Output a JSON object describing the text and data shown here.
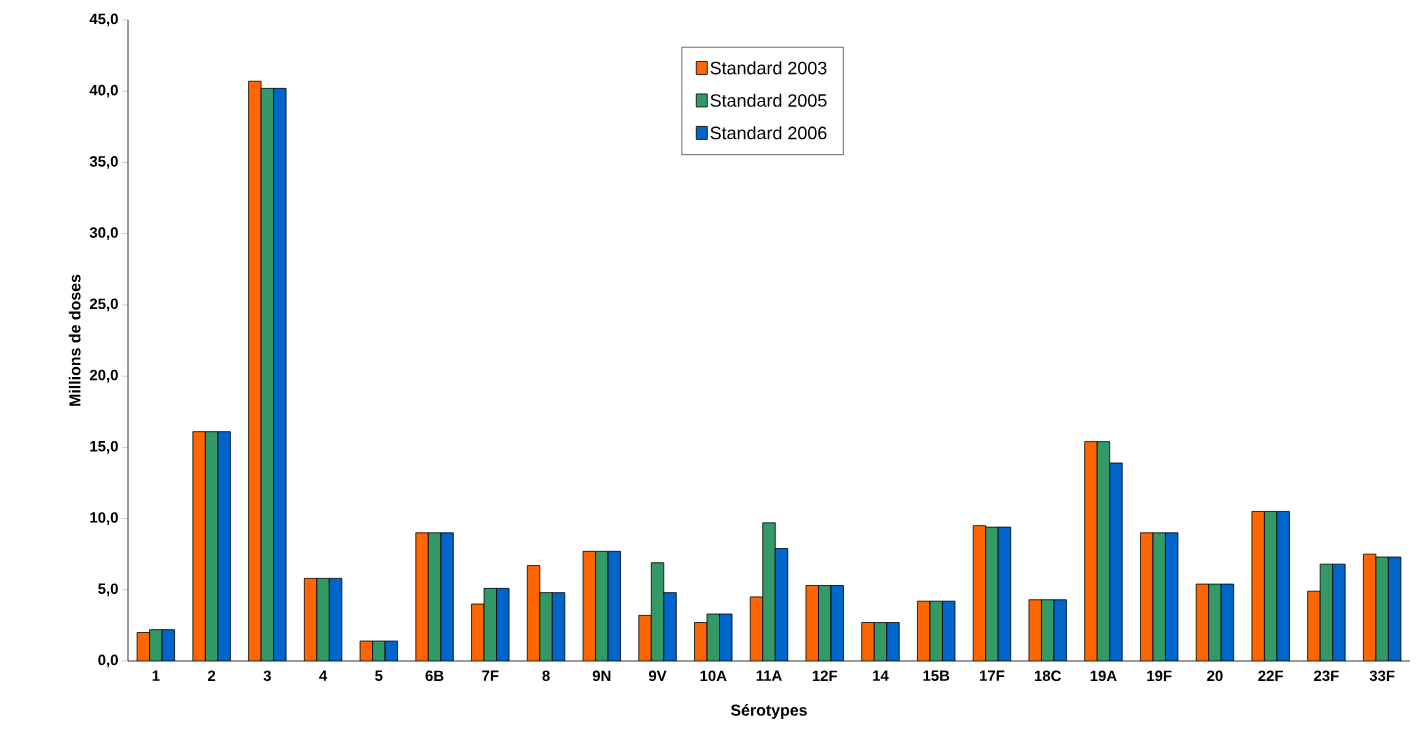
{
  "chart_data": {
    "type": "bar",
    "xlabel": "Sérotypes",
    "ylabel": "Millions de doses",
    "categories": [
      "1",
      "2",
      "3",
      "4",
      "5",
      "6B",
      "7F",
      "8",
      "9N",
      "9V",
      "10A",
      "11A",
      "12F",
      "14",
      "15B",
      "17F",
      "18C",
      "19A",
      "19F",
      "20",
      "22F",
      "23F",
      "33F"
    ],
    "series": [
      {
        "name": "Standard 2003",
        "color": "#ff6600",
        "values": [
          2.0,
          16.1,
          40.7,
          5.8,
          1.4,
          9.0,
          4.0,
          6.7,
          7.7,
          3.2,
          2.7,
          4.5,
          5.3,
          2.7,
          4.2,
          9.5,
          4.3,
          15.4,
          9.0,
          5.4,
          10.5,
          4.9,
          7.5
        ]
      },
      {
        "name": "Standard 2005",
        "color": "#339966",
        "values": [
          2.2,
          16.1,
          40.2,
          5.8,
          1.4,
          9.0,
          5.1,
          4.8,
          7.7,
          6.9,
          3.3,
          9.7,
          5.3,
          2.7,
          4.2,
          9.4,
          4.3,
          15.4,
          9.0,
          5.4,
          10.5,
          6.8,
          7.3
        ]
      },
      {
        "name": "Standard 2006",
        "color": "#0066cc",
        "values": [
          2.2,
          16.1,
          40.2,
          5.8,
          1.4,
          9.0,
          5.1,
          4.8,
          7.7,
          4.8,
          3.3,
          7.9,
          5.3,
          2.7,
          4.2,
          9.4,
          4.3,
          13.9,
          9.0,
          5.4,
          10.5,
          6.8,
          7.3
        ]
      }
    ],
    "ylim": [
      0,
      45
    ],
    "yticks": [
      {
        "value": 0,
        "label": "0,0"
      },
      {
        "value": 5,
        "label": "5,0"
      },
      {
        "value": 10,
        "label": "10,0"
      },
      {
        "value": 15,
        "label": "15,0"
      },
      {
        "value": 20,
        "label": "20,0"
      },
      {
        "value": 25,
        "label": "25,0"
      },
      {
        "value": 30,
        "label": "30,0"
      },
      {
        "value": 35,
        "label": "35,0"
      },
      {
        "value": 40,
        "label": "40,0"
      },
      {
        "value": 45,
        "label": "45,0"
      }
    ],
    "grid": false,
    "legend": "top"
  }
}
